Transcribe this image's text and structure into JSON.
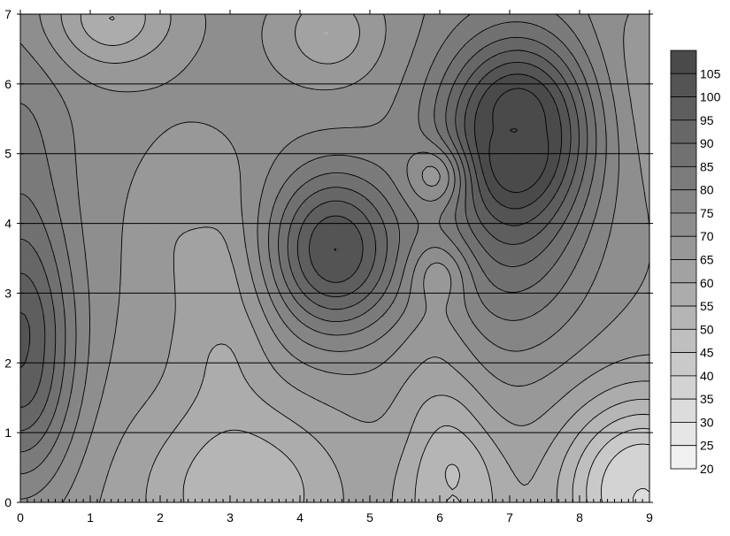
{
  "chart_data": {
    "type": "heatmap",
    "subtype": "filled-contour",
    "title": "",
    "xlabel": "",
    "ylabel": "",
    "xlim": [
      0,
      9
    ],
    "ylim": [
      0,
      7
    ],
    "x_ticks": [
      "0",
      "1",
      "2",
      "3",
      "4",
      "5",
      "6",
      "7",
      "8",
      "9"
    ],
    "y_ticks": [
      "0",
      "1",
      "2",
      "3",
      "4",
      "5",
      "6",
      "7"
    ],
    "horizontal_grid": true,
    "vertical_grid": false,
    "colormap": "grayscale",
    "color_low": "#f0f0f0",
    "color_high": "#4a4a4a",
    "contour_levels": [
      20,
      25,
      30,
      35,
      40,
      45,
      50,
      55,
      60,
      65,
      70,
      75,
      80,
      85,
      90,
      95,
      100,
      105
    ],
    "legend": {
      "placement": "right",
      "labels": [
        "105",
        "100",
        "95",
        "90",
        "85",
        "80",
        "75",
        "70",
        "65",
        "60",
        "55",
        "50",
        "45",
        "40",
        "35",
        "30",
        "25",
        "20"
      ]
    },
    "features": [
      {
        "kind": "max",
        "x": 7.1,
        "y": 5.3,
        "value": 105
      },
      {
        "kind": "max",
        "x": 4.5,
        "y": 3.6,
        "value": 100
      },
      {
        "kind": "max",
        "x": 0.1,
        "y": 2.1,
        "value": 95
      },
      {
        "kind": "min",
        "x": 8.9,
        "y": 0.2,
        "value": 30
      },
      {
        "kind": "min",
        "x": 3.2,
        "y": 0.2,
        "value": 50
      },
      {
        "kind": "min",
        "x": 6.2,
        "y": 0.1,
        "value": 45
      },
      {
        "kind": "min",
        "x": 1.3,
        "y": 6.9,
        "value": 50
      },
      {
        "kind": "min",
        "x": 4.4,
        "y": 6.7,
        "value": 55
      },
      {
        "kind": "min",
        "x": 2.5,
        "y": 4.3,
        "value": 63
      },
      {
        "kind": "min",
        "x": 2.8,
        "y": 2.7,
        "value": 57
      },
      {
        "kind": "min",
        "x": 3.0,
        "y": 1.5,
        "value": 53
      },
      {
        "kind": "min",
        "x": 6.0,
        "y": 4.7,
        "value": 65
      },
      {
        "kind": "min",
        "x": 6.0,
        "y": 3.3,
        "value": 63
      },
      {
        "kind": "min",
        "x": 6.0,
        "y": 1.8,
        "value": 58
      }
    ]
  }
}
